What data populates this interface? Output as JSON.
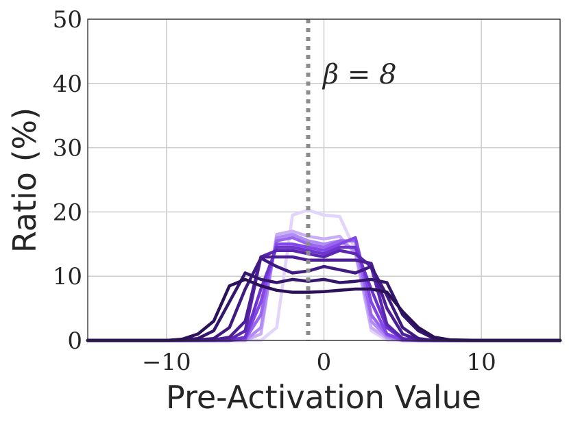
{
  "chart_data": {
    "type": "line",
    "xlabel": "Pre-Activation Value",
    "ylabel": "Ratio (%)",
    "xlim": [
      -15,
      15
    ],
    "ylim": [
      0,
      50
    ],
    "xticks": [
      -10,
      0,
      10
    ],
    "xtick_labels": [
      "−10",
      "0",
      "10"
    ],
    "yticks": [
      0,
      10,
      20,
      30,
      40,
      50
    ],
    "ytick_labels": [
      "0",
      "10",
      "20",
      "30",
      "40",
      "50"
    ],
    "grid": true,
    "annotation": {
      "text": "β = 8"
    },
    "vline": {
      "x": -1,
      "style": "dotted",
      "color": "#8c8c8c"
    },
    "x": [
      -15,
      -12,
      -10,
      -9,
      -8,
      -7,
      -6,
      -5,
      -4,
      -3,
      -2,
      -1,
      0,
      1,
      2,
      3,
      4,
      5,
      6,
      7,
      8,
      10,
      12,
      15
    ],
    "series": [
      {
        "color": "#e2d4fb",
        "values": [
          0,
          0,
          0,
          0,
          0,
          0,
          0,
          0,
          0,
          2,
          19.5,
          20.3,
          19.5,
          19.3,
          14,
          1.5,
          0,
          0,
          0,
          0,
          0,
          0,
          0,
          0
        ]
      },
      {
        "color": "#c9aef7",
        "values": [
          0,
          0,
          0,
          0,
          0,
          0,
          0,
          0,
          1,
          16.5,
          17,
          16.2,
          15.8,
          16.2,
          13.5,
          2,
          0.3,
          0,
          0,
          0,
          0,
          0,
          0,
          0
        ]
      },
      {
        "color": "#b18bf4",
        "values": [
          0,
          0,
          0,
          0,
          0,
          0,
          0,
          0,
          2,
          16,
          16.5,
          15.5,
          15,
          15.5,
          14,
          3,
          0.5,
          0,
          0,
          0,
          0,
          0,
          0,
          0
        ]
      },
      {
        "color": "#9a66ee",
        "values": [
          0,
          0,
          0,
          0,
          0,
          0,
          0,
          0.2,
          4,
          15.5,
          16,
          15,
          14.5,
          15.5,
          15.5,
          4,
          0.8,
          0,
          0,
          0,
          0,
          0,
          0,
          0
        ]
      },
      {
        "color": "#8247e6",
        "values": [
          0,
          0,
          0,
          0,
          0,
          0,
          0,
          0.3,
          6,
          15,
          15,
          14.5,
          14,
          15,
          16,
          6,
          1,
          0.1,
          0,
          0,
          0,
          0,
          0,
          0
        ]
      },
      {
        "color": "#6e34cf",
        "values": [
          0,
          0,
          0,
          0,
          0,
          0,
          0,
          0.5,
          8,
          14.5,
          14.5,
          14,
          13.5,
          14.5,
          14.5,
          8,
          2,
          0.2,
          0,
          0,
          0,
          0,
          0,
          0
        ]
      },
      {
        "color": "#5c27b0",
        "values": [
          0,
          0,
          0,
          0,
          0,
          0,
          0.1,
          1.5,
          13,
          14,
          14,
          13.5,
          13,
          14,
          13.5,
          11.5,
          2.5,
          0.3,
          0,
          0,
          0,
          0,
          0,
          0
        ]
      },
      {
        "color": "#4c1f96",
        "values": [
          0,
          0,
          0,
          0,
          0,
          0.1,
          0.5,
          3,
          13,
          13,
          13,
          12.5,
          12.5,
          12.5,
          12.5,
          12,
          5,
          1,
          0.1,
          0,
          0,
          0,
          0,
          0
        ]
      },
      {
        "color": "#3f1a80",
        "values": [
          0,
          0,
          0,
          0,
          0.1,
          0.3,
          2,
          8,
          12.8,
          11.5,
          10.5,
          10.8,
          11.5,
          11,
          10.5,
          11.5,
          7,
          2,
          0.3,
          0,
          0,
          0,
          0,
          0
        ]
      },
      {
        "color": "#34166c",
        "values": [
          0,
          0,
          0,
          0.1,
          0.3,
          1.5,
          6,
          10.5,
          9.5,
          9,
          9.5,
          9.2,
          9.5,
          9,
          9.2,
          9.5,
          9,
          4,
          1.5,
          0.3,
          0,
          0,
          0,
          0
        ]
      },
      {
        "color": "#2b1158",
        "values": [
          0,
          0,
          0,
          0.2,
          1,
          3,
          8.5,
          9.5,
          8.5,
          7.8,
          7.5,
          7.5,
          7.6,
          7.8,
          8,
          8,
          7.5,
          4.5,
          2,
          0.5,
          0.1,
          0,
          0,
          0
        ]
      }
    ]
  }
}
